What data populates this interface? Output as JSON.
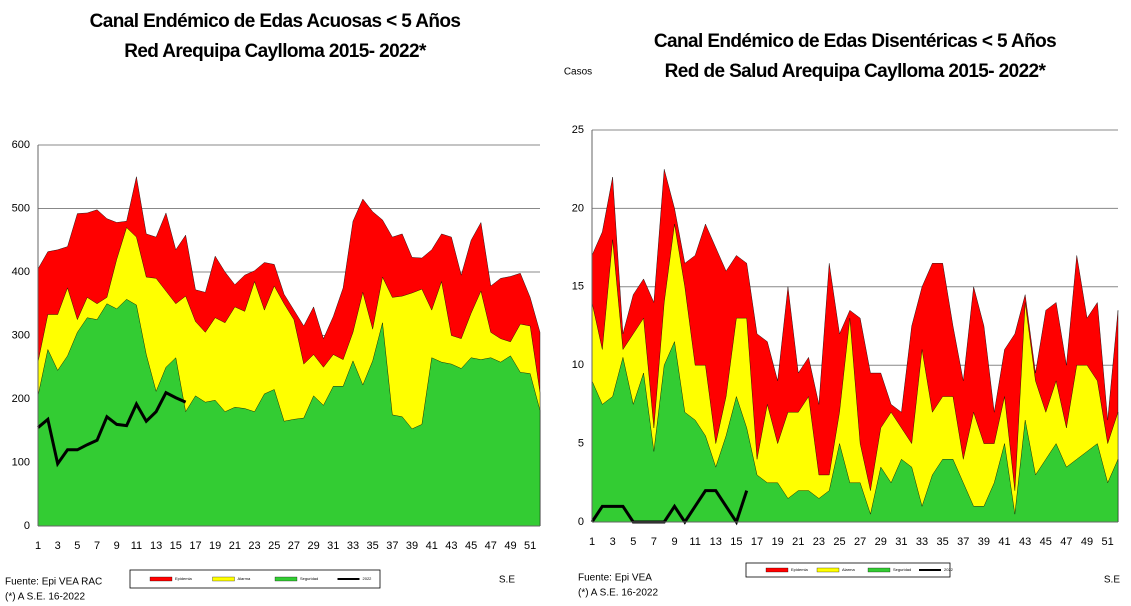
{
  "chart_data": [
    {
      "type": "area",
      "title": "Canal Endémico de Edas Acuosas  < 5 Años",
      "subtitle": "Red Arequipa Caylloma 2015- 2022*",
      "x_label": "S.E",
      "source": "Fuente: Epi VEA RAC",
      "note": "(*) A S.E.  16-2022",
      "categories": [
        1,
        null,
        3,
        null,
        5,
        null,
        7,
        null,
        9,
        null,
        11,
        null,
        13,
        null,
        15,
        null,
        17,
        null,
        19,
        null,
        21,
        null,
        23,
        null,
        25,
        null,
        27,
        null,
        29,
        null,
        31,
        null,
        33,
        null,
        35,
        null,
        37,
        null,
        39,
        null,
        41,
        null,
        43,
        null,
        45,
        null,
        47,
        null,
        49,
        null,
        51,
        null
      ],
      "ylim": [
        0,
        600
      ],
      "yticks": [
        0,
        100,
        200,
        300,
        400,
        500,
        600
      ],
      "grid": true,
      "series": [
        {
          "name": "Epidemia",
          "type": "area",
          "color": "#ff0000",
          "values": [
            405,
            432,
            435,
            440,
            492,
            493,
            498,
            484,
            478,
            480,
            550,
            460,
            455,
            493,
            435,
            458,
            372,
            368,
            425,
            400,
            380,
            395,
            402,
            415,
            412,
            365,
            340,
            315,
            345,
            295,
            330,
            375,
            480,
            515,
            495,
            482,
            455,
            460,
            423,
            422,
            435,
            460,
            455,
            395,
            450,
            478,
            378,
            390,
            393,
            398,
            360,
            305
          ]
        },
        {
          "name": "Alarma",
          "type": "area",
          "color": "#ffff00",
          "values": [
            258,
            333,
            333,
            375,
            325,
            360,
            350,
            360,
            420,
            470,
            455,
            392,
            390,
            370,
            350,
            362,
            322,
            305,
            328,
            320,
            345,
            338,
            385,
            340,
            378,
            350,
            325,
            255,
            270,
            250,
            270,
            262,
            305,
            368,
            310,
            392,
            360,
            362,
            367,
            373,
            340,
            385,
            300,
            295,
            335,
            370,
            305,
            295,
            290,
            318,
            315,
            210
          ]
        },
        {
          "name": "Seguridad",
          "type": "area",
          "color": "#33cc33",
          "values": [
            205,
            278,
            245,
            268,
            305,
            328,
            325,
            350,
            342,
            357,
            348,
            270,
            212,
            250,
            265,
            180,
            205,
            195,
            198,
            180,
            187,
            185,
            180,
            208,
            215,
            165,
            168,
            170,
            205,
            190,
            220,
            220,
            260,
            222,
            260,
            320,
            175,
            172,
            153,
            160,
            265,
            258,
            255,
            248,
            265,
            262,
            265,
            258,
            268,
            242,
            240,
            182
          ]
        },
        {
          "name": "2022",
          "type": "line",
          "color": "#000000",
          "values": [
            155,
            168,
            98,
            120,
            120,
            128,
            135,
            172,
            160,
            158,
            192,
            165,
            180,
            210,
            202,
            195,
            null,
            null,
            null,
            null,
            null,
            null,
            null,
            null,
            null,
            null,
            null,
            null,
            null,
            null,
            null,
            null,
            null,
            null,
            null,
            null,
            null,
            null,
            null,
            null,
            null,
            null,
            null,
            null,
            null,
            null,
            null,
            null,
            null,
            null,
            null,
            null
          ]
        }
      ]
    },
    {
      "type": "area",
      "title": "Canal Endémico de Edas Disentéricas  < 5 Años",
      "subtitle": "Red  de Salud Arequipa Caylloma 2015- 2022*",
      "y_label": "Casos",
      "x_label": "S.E",
      "source": "Fuente: Epi VEA",
      "note": "(*) A S.E. 16-2022",
      "categories": [
        1,
        null,
        3,
        null,
        5,
        null,
        7,
        null,
        9,
        null,
        11,
        null,
        13,
        null,
        15,
        null,
        17,
        null,
        19,
        null,
        21,
        null,
        23,
        null,
        25,
        null,
        27,
        null,
        29,
        null,
        31,
        null,
        33,
        null,
        35,
        null,
        37,
        null,
        39,
        null,
        41,
        null,
        43,
        null,
        45,
        null,
        47,
        null,
        49,
        null,
        51,
        null
      ],
      "ylim": [
        0,
        25
      ],
      "yticks": [
        0,
        5,
        10,
        15,
        20,
        25
      ],
      "grid": true,
      "series": [
        {
          "name": "Epidemia",
          "type": "area",
          "color": "#ff0000",
          "values": [
            17,
            18.5,
            22,
            12,
            14.5,
            15.5,
            14,
            22.5,
            20,
            16.5,
            17,
            19,
            17.5,
            16,
            17,
            16.5,
            12,
            11.5,
            9,
            15,
            9.5,
            10.5,
            7.5,
            16.5,
            12,
            13.5,
            13,
            9.5,
            9.5,
            7.5,
            7,
            12.5,
            15,
            16.5,
            16.5,
            12.5,
            9,
            15,
            12.5,
            7,
            11,
            12,
            14.5,
            9.5,
            13.5,
            14,
            10,
            17,
            13,
            14,
            6.5,
            13.5
          ]
        },
        {
          "name": "Alarma",
          "type": "area",
          "color": "#ffff00",
          "values": [
            14,
            11,
            18,
            11,
            12,
            13,
            6,
            14,
            19,
            15,
            10,
            10,
            5,
            8,
            13,
            13,
            4,
            7.5,
            5,
            7,
            7,
            8,
            3,
            3,
            7,
            13,
            5,
            2,
            6,
            7,
            6,
            5,
            11,
            7,
            8,
            8,
            4,
            7,
            5,
            5,
            8,
            2,
            14,
            9,
            7,
            9,
            6,
            10,
            10,
            9,
            5,
            7
          ]
        },
        {
          "name": "Seguridad",
          "type": "area",
          "color": "#33cc33",
          "values": [
            9,
            7.5,
            8,
            10.5,
            7.5,
            9.5,
            4.5,
            10,
            11.5,
            7,
            6.5,
            5.5,
            3.5,
            5.5,
            8,
            6,
            3,
            2.5,
            2.5,
            1.5,
            2,
            2,
            1.5,
            2,
            5,
            2.5,
            2.5,
            0.5,
            3.5,
            2.5,
            4,
            3.5,
            1,
            3,
            4,
            4,
            2.5,
            1,
            1,
            2.5,
            5,
            0.5,
            6.5,
            3,
            4,
            5,
            3.5,
            4,
            4.5,
            5,
            2.5,
            4
          ]
        },
        {
          "name": "2022",
          "type": "line",
          "color": "#000000",
          "values": [
            0,
            1,
            1,
            1,
            0,
            0,
            0,
            0,
            1,
            0,
            1,
            2,
            2,
            1,
            0,
            2,
            null,
            null,
            null,
            null,
            null,
            null,
            null,
            null,
            null,
            null,
            null,
            null,
            null,
            null,
            null,
            null,
            null,
            null,
            null,
            null,
            null,
            null,
            null,
            null,
            null,
            null,
            null,
            null,
            null,
            null,
            null,
            null,
            null,
            null,
            null,
            null
          ]
        }
      ]
    }
  ]
}
